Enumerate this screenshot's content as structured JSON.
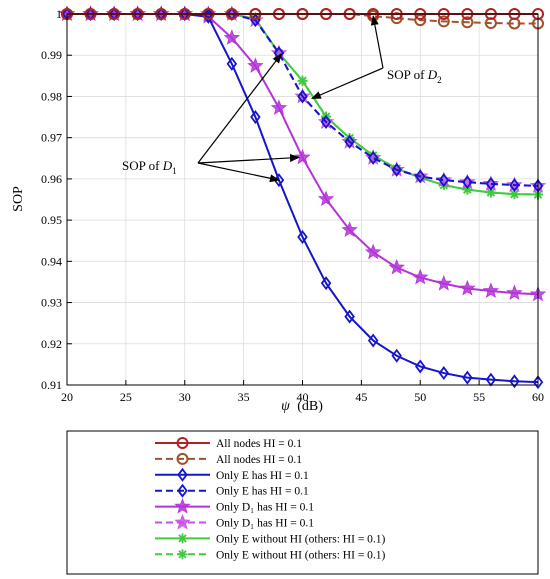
{
  "chart_data": {
    "type": "line",
    "xlabel_symbol": "ψ",
    "xlabel_unit": "(dB)",
    "ylabel": "SOP",
    "xlim": [
      20,
      60
    ],
    "ylim": [
      0.91,
      1.0
    ],
    "xticks": [
      20,
      25,
      30,
      35,
      40,
      45,
      50,
      55,
      60
    ],
    "yticks": [
      0.91,
      0.92,
      0.93,
      0.94,
      0.95,
      0.96,
      0.97,
      0.98,
      0.99,
      1
    ],
    "xtick_labels": [
      "20",
      "25",
      "30",
      "35",
      "40",
      "45",
      "50",
      "55",
      "60"
    ],
    "ytick_labels": [
      "0.91",
      "0.92",
      "0.93",
      "0.94",
      "0.95",
      "0.96",
      "0.97",
      "0.98",
      "0.99",
      "1"
    ],
    "grid": true,
    "legend_position": "below plot",
    "x": [
      20,
      22,
      24,
      26,
      28,
      30,
      32,
      34,
      36,
      38,
      40,
      42,
      44,
      46,
      48,
      50,
      52,
      54,
      56,
      58,
      60
    ],
    "series": [
      {
        "name": "All nodes HI = 0.1",
        "color": "#b22222",
        "marker": "circle",
        "dash": "solid",
        "values": [
          1,
          1,
          1,
          1,
          1,
          1,
          1,
          1,
          1,
          1,
          1,
          1,
          1,
          1,
          1,
          1,
          1,
          1,
          1,
          1,
          1
        ]
      },
      {
        "name": "All nodes HI = 0.1",
        "color": "#a0522d",
        "marker": "circle",
        "dash": "dashed",
        "values": [
          1,
          1,
          1,
          1,
          1,
          1,
          1,
          1,
          1,
          1,
          1,
          1,
          1,
          0.9995,
          0.999,
          0.9985,
          0.9982,
          0.998,
          0.9978,
          0.9977,
          0.9977
        ]
      },
      {
        "name": "Only E has HI = 0.1",
        "color": "#1515cc",
        "marker": "diamond",
        "dash": "solid",
        "values": [
          1,
          1,
          1,
          1,
          1,
          1,
          0.9993,
          0.9879,
          0.975,
          0.9597,
          0.9459,
          0.9347,
          0.9266,
          0.9208,
          0.9171,
          0.9145,
          0.9129,
          0.9118,
          0.9113,
          0.9109,
          0.9107
        ]
      },
      {
        "name": "Only E has HI = 0.1",
        "color": "#1515cc",
        "marker": "diamond",
        "dash": "dashed",
        "values": [
          1,
          1,
          1,
          1,
          1,
          1,
          1,
          1,
          0.9985,
          0.9905,
          0.98,
          0.9738,
          0.969,
          0.9651,
          0.9622,
          0.9606,
          0.9597,
          0.9592,
          0.9588,
          0.9585,
          0.9583
        ]
      },
      {
        "name": "Only D₁ has HI = 0.1",
        "color": "#b432d8",
        "marker": "star",
        "dash": "solid",
        "values": [
          1,
          1,
          1,
          1,
          1,
          1,
          0.9994,
          0.9942,
          0.9874,
          0.9772,
          0.9652,
          0.9551,
          0.9476,
          0.9422,
          0.9385,
          0.9361,
          0.9346,
          0.9334,
          0.9328,
          0.9323,
          0.932
        ]
      },
      {
        "name": "Only D₁ has HI = 0.1",
        "color": "#c84ee8",
        "marker": "star",
        "dash": "dashed",
        "values": [
          1,
          1,
          1,
          1,
          1,
          1,
          1,
          1,
          0.9985,
          0.9905,
          0.98,
          0.9738,
          0.969,
          0.9651,
          0.9622,
          0.9606,
          0.9597,
          0.9592,
          0.9588,
          0.9585,
          0.9583
        ]
      },
      {
        "name": "Only E without HI (others: HI = 0.1)",
        "color": "#3fcc3f",
        "marker": "asterisk",
        "dash": "solid",
        "values": [
          1,
          1,
          1,
          1,
          1,
          1,
          1,
          1,
          0.9988,
          0.9905,
          0.9838,
          0.9751,
          0.9699,
          0.9657,
          0.9625,
          0.9603,
          0.9585,
          0.9574,
          0.9567,
          0.9563,
          0.9562
        ]
      },
      {
        "name": "Only E without HI (others: HI = 0.1)",
        "color": "#3fcc3f",
        "marker": "asterisk",
        "dash": "dashed",
        "values": [
          1,
          1,
          1,
          1,
          1,
          1,
          1,
          1,
          0.9988,
          0.9905,
          0.9838,
          0.9751,
          0.9699,
          0.9657,
          0.9625,
          0.9603,
          0.9585,
          0.9574,
          0.9567,
          0.9563,
          0.9562
        ]
      }
    ],
    "annotations": [
      {
        "label_prefix": "SOP of ",
        "label_var": "D",
        "label_sub": "2",
        "targets": [
          [
            46,
            0.9995
          ],
          [
            40.8,
            0.9795
          ]
        ]
      },
      {
        "label_prefix": "SOP of ",
        "label_var": "D",
        "label_sub": "1",
        "targets": [
          [
            38.2,
            0.9903
          ],
          [
            39.7,
            0.9652
          ],
          [
            38,
            0.9597
          ]
        ]
      }
    ]
  }
}
